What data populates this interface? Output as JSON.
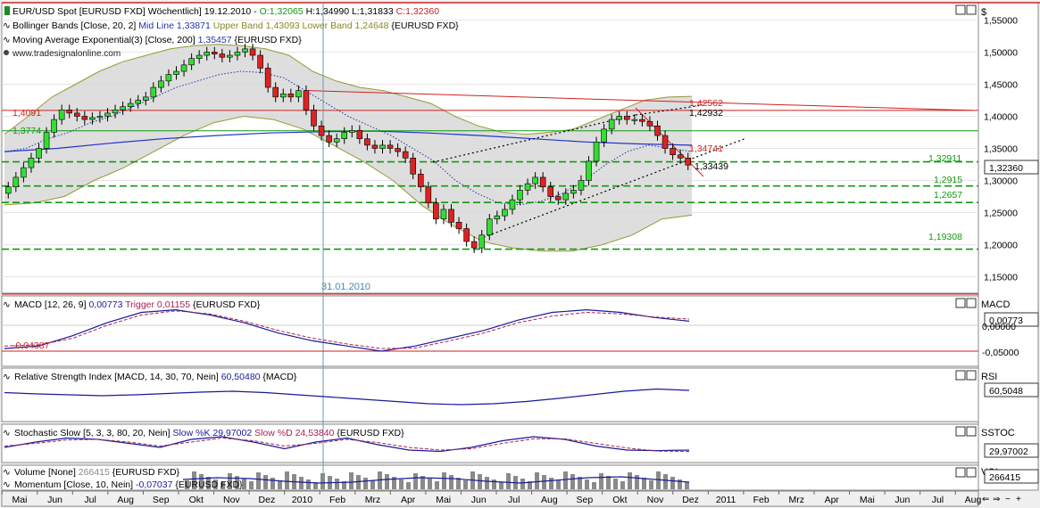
{
  "colors": {
    "panel_bg": "#ffffff",
    "frame_bg": "#f0f0f0",
    "up_candle": "#33dd33",
    "down_candle": "#dd2222",
    "bollinger_mid": "#2233aa",
    "bollinger_fill": "#d8d8d8",
    "bollinger_band": "#999933",
    "ema": "#2233cc",
    "support": "#119911",
    "trend_red": "#cc2222",
    "macd": "#1a1a99",
    "trigger": "#aa2255"
  },
  "main_panel": {
    "header": [
      {
        "segments": [
          {
            "text": "EUR/USD Spot [EURUSD FXD]  Wöchentlich] 19.12.2010 - ",
            "color": "#000000"
          },
          {
            "text": "O:1,32065",
            "color": "#119911"
          },
          {
            "text": " H:1,34990 L:1,31833 ",
            "color": "#000000"
          },
          {
            "text": "C:1,32360",
            "color": "#cc2222"
          }
        ]
      },
      {
        "segments": [
          {
            "text": "Bollinger Bands [Close, 20, 2] ",
            "color": "#000000"
          },
          {
            "text": "Mid Line 1,33871",
            "color": "#2233aa"
          },
          {
            "text": " Upper Band 1,43093 Lower Band 1,24648",
            "color": "#888822"
          },
          {
            "text": " {EURUSD FXD}",
            "color": "#000000"
          }
        ]
      },
      {
        "segments": [
          {
            "text": "Moving Average Exponential(3) [Close, 200] ",
            "color": "#000000"
          },
          {
            "text": "1,35457",
            "color": "#2233aa"
          },
          {
            "text": " {EURUSD FXD}",
            "color": "#000000"
          }
        ]
      }
    ],
    "watermark": "www.tradesignalonline.com",
    "currency_symbol": "$",
    "price_ticks": [
      "1,55000",
      "1,50000",
      "1,45000",
      "1,40000",
      "1,35000",
      "1,30000",
      "1,25000",
      "1,20000",
      "1,15000"
    ],
    "current_price": "1,32360",
    "vertical_marker": "31.01.2010",
    "level_labels": [
      {
        "text": "1,4091",
        "color": "#cc2222"
      },
      {
        "text": "1,3774",
        "color": "#119911"
      },
      {
        "text": "1,42562",
        "color": "#cc2222"
      },
      {
        "text": "1,42932",
        "color": "#000000"
      },
      {
        "text": "1,34741",
        "color": "#cc2222"
      },
      {
        "text": "1,33439",
        "color": "#000000"
      },
      {
        "text": "1,32911",
        "color": "#119911"
      },
      {
        "text": "1,2915",
        "color": "#119911"
      },
      {
        "text": "1,2657",
        "color": "#119911"
      },
      {
        "text": "1,19308",
        "color": "#119911"
      }
    ]
  },
  "macd_panel": {
    "header": [
      {
        "text": "MACD [12, 26, 9] ",
        "color": "#000000"
      },
      {
        "text": "0,00773",
        "color": "#1a1a99"
      },
      {
        "text": " Trigger 0,01155",
        "color": "#aa2255"
      },
      {
        "text": " {EURUSD FXD}",
        "color": "#000000"
      }
    ],
    "label": "MACD",
    "value": "0,00773",
    "ticks": [
      "0,00000",
      "-0,05000"
    ],
    "level_label": "-0,04387"
  },
  "rsi_panel": {
    "header": [
      {
        "text": "Relative Strength Index [MACD, 14, 30, 70, Nein] ",
        "color": "#000000"
      },
      {
        "text": "60,50480",
        "color": "#1a1a99"
      },
      {
        "text": " {MACD}",
        "color": "#000000"
      }
    ],
    "label": "RSI",
    "value": "60,5048"
  },
  "stoch_panel": {
    "header": [
      {
        "text": "Stochastic Slow [5, 3, 3, 80, 20, Nein] ",
        "color": "#000000"
      },
      {
        "text": "Slow %K 29,97002",
        "color": "#1a1a99"
      },
      {
        "text": " Slow %D 24,53840",
        "color": "#aa2255"
      },
      {
        "text": " {EURUSD FXD}",
        "color": "#000000"
      }
    ],
    "label": "SSTOC",
    "value": "29,97002"
  },
  "volume_panel": {
    "header": [
      [
        {
          "text": "Volume [None] ",
          "color": "#000000"
        },
        {
          "text": "266415",
          "color": "#888888"
        },
        {
          "text": " {EURUSD FXD}",
          "color": "#000000"
        }
      ],
      [
        {
          "text": "Momentum [Close, 10, Nein] ",
          "color": "#000000"
        },
        {
          "text": "-0,07037",
          "color": "#1a1a99"
        },
        {
          "text": " {EURUSD FXD}",
          "color": "#000000"
        }
      ]
    ],
    "label": "VOL",
    "value": "266415"
  },
  "time_axis": [
    "Mai",
    "Jun",
    "Jul",
    "Aug",
    "Sep",
    "Okt",
    "Nov",
    "Dez",
    "2010",
    "Feb",
    "Mrz",
    "Apr",
    "Mai",
    "Jun",
    "Jul",
    "Aug",
    "Sep",
    "Okt",
    "Nov",
    "Dez",
    "2011",
    "Feb",
    "Mrz",
    "Apr",
    "Mai",
    "Jun",
    "Jul",
    "Aug"
  ],
  "chart_data": {
    "type": "candlestick",
    "interval": "weekly",
    "x_range": [
      "2009-05",
      "2011-08"
    ],
    "y_range": [
      1.13,
      1.57
    ],
    "candles_close": [
      1.29,
      1.305,
      1.32,
      1.335,
      1.35,
      1.375,
      1.395,
      1.41,
      1.405,
      1.4,
      1.395,
      1.398,
      1.4,
      1.405,
      1.41,
      1.415,
      1.42,
      1.425,
      1.43,
      1.445,
      1.455,
      1.465,
      1.47,
      1.48,
      1.49,
      1.495,
      1.5,
      1.497,
      1.492,
      1.495,
      1.5,
      1.505,
      1.495,
      1.475,
      1.445,
      1.43,
      1.435,
      1.43,
      1.44,
      1.41,
      1.385,
      1.37,
      1.36,
      1.365,
      1.375,
      1.378,
      1.365,
      1.355,
      1.35,
      1.355,
      1.35,
      1.345,
      1.335,
      1.31,
      1.29,
      1.265,
      1.24,
      1.255,
      1.235,
      1.225,
      1.205,
      1.195,
      1.215,
      1.24,
      1.245,
      1.255,
      1.27,
      1.285,
      1.295,
      1.305,
      1.29,
      1.275,
      1.27,
      1.28,
      1.285,
      1.3,
      1.33,
      1.36,
      1.38,
      1.395,
      1.4,
      1.395,
      1.395,
      1.392,
      1.385,
      1.37,
      1.35,
      1.34,
      1.335,
      1.324
    ],
    "bollinger_mid": [
      1.345,
      1.35,
      1.365,
      1.375,
      1.39,
      1.4,
      1.415,
      1.43,
      1.445,
      1.455,
      1.465,
      1.47,
      1.468,
      1.46,
      1.44,
      1.42,
      1.4,
      1.385,
      1.37,
      1.35,
      1.33,
      1.3,
      1.28,
      1.265,
      1.262,
      1.268,
      1.28,
      1.3,
      1.325,
      1.345,
      1.355,
      1.35,
      1.345
    ],
    "bollinger_upper": [
      1.372,
      1.4,
      1.43,
      1.45,
      1.47,
      1.485,
      1.495,
      1.505,
      1.51,
      1.512,
      1.51,
      1.505,
      1.495,
      1.47,
      1.455,
      1.445,
      1.44,
      1.43,
      1.42,
      1.4,
      1.385,
      1.375,
      1.372,
      1.375,
      1.38,
      1.395,
      1.41,
      1.425,
      1.43,
      1.431
    ],
    "bollinger_lower": [
      1.262,
      1.265,
      1.275,
      1.3,
      1.32,
      1.345,
      1.37,
      1.39,
      1.4,
      1.395,
      1.38,
      1.355,
      1.33,
      1.3,
      1.26,
      1.23,
      1.205,
      1.195,
      1.19,
      1.19,
      1.2,
      1.215,
      1.24,
      1.246
    ],
    "ema_200": [
      1.345,
      1.35,
      1.358,
      1.365,
      1.37,
      1.374,
      1.376,
      1.377,
      1.374,
      1.37,
      1.365,
      1.36,
      1.357,
      1.355
    ],
    "support_lines": [
      1.4091,
      1.3774,
      1.32911,
      1.2915,
      1.2657,
      1.19308
    ],
    "resistance_trend": {
      "from": 1.44,
      "to": 1.4091
    },
    "annotations": [
      "31.01.2010"
    ],
    "macd": [
      -0.045,
      -0.04,
      -0.02,
      0.005,
      0.025,
      0.03,
      0.02,
      0.005,
      -0.015,
      -0.03,
      -0.04,
      -0.05,
      -0.04,
      -0.025,
      -0.01,
      0.01,
      0.025,
      0.03,
      0.025,
      0.015,
      0.008
    ],
    "trigger": [
      -0.04,
      -0.038,
      -0.025,
      0.0,
      0.02,
      0.028,
      0.022,
      0.008,
      -0.01,
      -0.025,
      -0.036,
      -0.045,
      -0.044,
      -0.03,
      -0.015,
      0.005,
      0.018,
      0.025,
      0.022,
      0.016,
      0.012
    ],
    "rsi_last": 60.5048,
    "stoch_k_last": 29.97002,
    "stoch_d_last": 24.5384,
    "volume_last": 266415,
    "momentum_last": -0.07037
  }
}
